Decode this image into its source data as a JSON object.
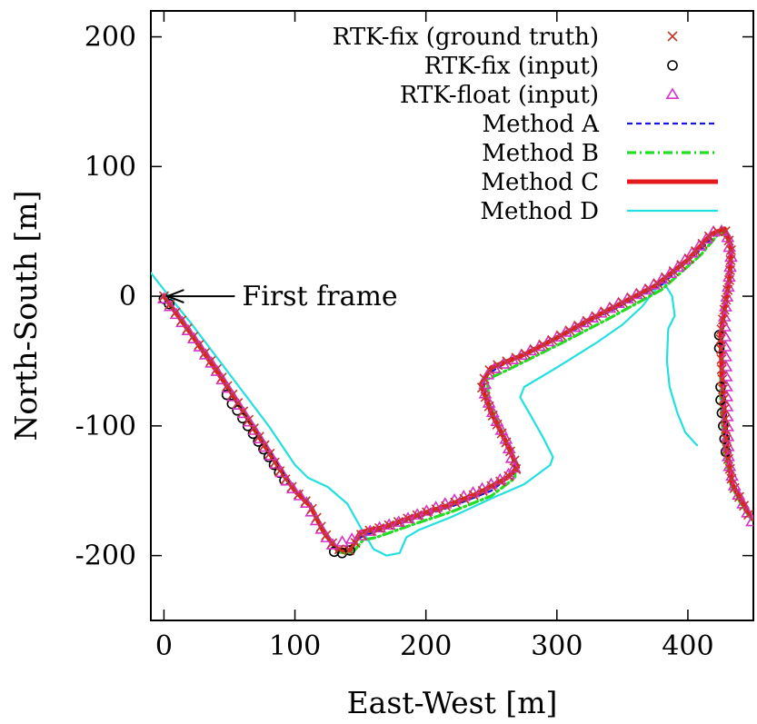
{
  "chart_data": {
    "type": "line",
    "xlabel": "East-West [m]",
    "ylabel": "North-South [m]",
    "xlim": [
      -10,
      450
    ],
    "ylim": [
      -250,
      220
    ],
    "x_ticks": [
      0,
      100,
      200,
      300,
      400
    ],
    "y_ticks": [
      200,
      100,
      0,
      -100,
      -200
    ],
    "x_tick_labels": [
      "0",
      "100",
      "200",
      "300",
      "400"
    ],
    "y_tick_labels": [
      "200",
      "100",
      "0",
      "-100",
      "-200"
    ],
    "grid": false,
    "legend_position": "top-right",
    "annotation": {
      "text": "First frame",
      "x": 0,
      "y": 0
    },
    "series": [
      {
        "name": "RTK-fix (ground truth)",
        "style": "marker-x",
        "color": "#c0392b",
        "points": [
          [
            0,
            0
          ],
          [
            10,
            -14
          ],
          [
            20,
            -28
          ],
          [
            30,
            -42
          ],
          [
            40,
            -56
          ],
          [
            50,
            -72
          ],
          [
            60,
            -88
          ],
          [
            70,
            -104
          ],
          [
            80,
            -120
          ],
          [
            90,
            -138
          ],
          [
            100,
            -150
          ],
          [
            112,
            -162
          ],
          [
            122,
            -182
          ],
          [
            132,
            -195
          ],
          [
            142,
            -196
          ],
          [
            152,
            -182
          ],
          [
            168,
            -178
          ],
          [
            190,
            -170
          ],
          [
            215,
            -162
          ],
          [
            240,
            -152
          ],
          [
            262,
            -140
          ],
          [
            270,
            -132
          ],
          [
            260,
            -110
          ],
          [
            250,
            -90
          ],
          [
            242,
            -68
          ],
          [
            250,
            -55
          ],
          [
            275,
            -45
          ],
          [
            300,
            -32
          ],
          [
            325,
            -18
          ],
          [
            350,
            -5
          ],
          [
            375,
            8
          ],
          [
            400,
            28
          ],
          [
            418,
            48
          ],
          [
            428,
            52
          ],
          [
            433,
            38
          ],
          [
            432,
            15
          ],
          [
            428,
            -10
          ],
          [
            425,
            -30
          ],
          [
            426,
            -60
          ],
          [
            428,
            -90
          ],
          [
            430,
            -120
          ],
          [
            434,
            -145
          ],
          [
            442,
            -160
          ],
          [
            448,
            -172
          ]
        ]
      },
      {
        "name": "RTK-fix (input)",
        "style": "marker-circle",
        "color": "#000000",
        "points": [
          [
            0,
            -2
          ],
          [
            4,
            -6
          ],
          [
            48,
            -76
          ],
          [
            52,
            -83
          ],
          [
            56,
            -88
          ],
          [
            60,
            -94
          ],
          [
            64,
            -100
          ],
          [
            68,
            -106
          ],
          [
            72,
            -112
          ],
          [
            76,
            -118
          ],
          [
            80,
            -124
          ],
          [
            84,
            -130
          ],
          [
            88,
            -136
          ],
          [
            92,
            -142
          ],
          [
            130,
            -197
          ],
          [
            136,
            -198
          ],
          [
            142,
            -196
          ],
          [
            424,
            -30
          ],
          [
            424,
            -40
          ],
          [
            425,
            -70
          ],
          [
            425,
            -80
          ],
          [
            426,
            -90
          ],
          [
            427,
            -100
          ],
          [
            428,
            -110
          ],
          [
            429,
            -120
          ]
        ]
      },
      {
        "name": "RTK-float (input)",
        "style": "marker-triangle",
        "color": "#d633c8",
        "points": [
          [
            0,
            -2
          ],
          [
            8,
            -12
          ],
          [
            18,
            -26
          ],
          [
            28,
            -40
          ],
          [
            38,
            -54
          ],
          [
            96,
            -146
          ],
          [
            108,
            -158
          ],
          [
            118,
            -176
          ],
          [
            128,
            -192
          ],
          [
            148,
            -186
          ],
          [
            160,
            -180
          ],
          [
            180,
            -174
          ],
          [
            200,
            -166
          ],
          [
            220,
            -158
          ],
          [
            240,
            -150
          ],
          [
            258,
            -141
          ],
          [
            268,
            -134
          ],
          [
            262,
            -112
          ],
          [
            252,
            -92
          ],
          [
            244,
            -72
          ],
          [
            248,
            -58
          ],
          [
            270,
            -47
          ],
          [
            290,
            -37
          ],
          [
            310,
            -26
          ],
          [
            330,
            -15
          ],
          [
            350,
            -4
          ],
          [
            370,
            6
          ],
          [
            390,
            20
          ],
          [
            410,
            40
          ],
          [
            422,
            52
          ],
          [
            430,
            48
          ],
          [
            433,
            30
          ],
          [
            431,
            8
          ],
          [
            428,
            -14
          ],
          [
            431,
            -128
          ],
          [
            436,
            -148
          ],
          [
            444,
            -164
          ],
          [
            449,
            -174
          ]
        ]
      },
      {
        "name": "Method A",
        "style": "dashed",
        "color": "#1515d9",
        "points": [
          [
            0,
            0
          ],
          [
            20,
            -28
          ],
          [
            50,
            -72
          ],
          [
            80,
            -120
          ],
          [
            100,
            -150
          ],
          [
            112,
            -160
          ],
          [
            120,
            -178
          ],
          [
            130,
            -194
          ],
          [
            140,
            -197
          ],
          [
            150,
            -186
          ],
          [
            160,
            -182
          ],
          [
            190,
            -172
          ],
          [
            220,
            -162
          ],
          [
            250,
            -150
          ],
          [
            268,
            -136
          ],
          [
            265,
            -120
          ],
          [
            255,
            -100
          ],
          [
            245,
            -78
          ],
          [
            244,
            -62
          ],
          [
            260,
            -52
          ],
          [
            300,
            -33
          ],
          [
            340,
            -12
          ],
          [
            380,
            9
          ],
          [
            410,
            36
          ],
          [
            425,
            52
          ],
          [
            433,
            44
          ],
          [
            433,
            20
          ],
          [
            428,
            -10
          ],
          [
            426,
            -40
          ],
          [
            426,
            -80
          ],
          [
            429,
            -118
          ],
          [
            434,
            -145
          ],
          [
            442,
            -160
          ],
          [
            450,
            -172
          ]
        ]
      },
      {
        "name": "Method B",
        "style": "dash-dot",
        "color": "#22dd22",
        "points": [
          [
            0,
            0
          ],
          [
            20,
            -28
          ],
          [
            50,
            -72
          ],
          [
            80,
            -120
          ],
          [
            100,
            -150
          ],
          [
            112,
            -162
          ],
          [
            122,
            -182
          ],
          [
            132,
            -197
          ],
          [
            143,
            -199
          ],
          [
            152,
            -188
          ],
          [
            162,
            -186
          ],
          [
            190,
            -176
          ],
          [
            220,
            -166
          ],
          [
            250,
            -154
          ],
          [
            268,
            -140
          ],
          [
            268,
            -126
          ],
          [
            258,
            -104
          ],
          [
            248,
            -82
          ],
          [
            247,
            -64
          ],
          [
            262,
            -57
          ],
          [
            300,
            -38
          ],
          [
            340,
            -17
          ],
          [
            380,
            5
          ],
          [
            410,
            32
          ],
          [
            425,
            50
          ],
          [
            432,
            42
          ],
          [
            432,
            18
          ],
          [
            427,
            -12
          ],
          [
            425,
            -42
          ],
          [
            425,
            -82
          ],
          [
            428,
            -120
          ],
          [
            433,
            -146
          ],
          [
            441,
            -161
          ],
          [
            449,
            -173
          ]
        ]
      },
      {
        "name": "Method C",
        "style": "solid-thick",
        "color": "#e31a1c",
        "points": [
          [
            0,
            0
          ],
          [
            20,
            -28
          ],
          [
            50,
            -72
          ],
          [
            80,
            -120
          ],
          [
            100,
            -150
          ],
          [
            112,
            -162
          ],
          [
            122,
            -182
          ],
          [
            132,
            -195
          ],
          [
            142,
            -196
          ],
          [
            150,
            -182
          ],
          [
            168,
            -178
          ],
          [
            190,
            -170
          ],
          [
            215,
            -162
          ],
          [
            240,
            -152
          ],
          [
            262,
            -140
          ],
          [
            270,
            -132
          ],
          [
            260,
            -110
          ],
          [
            250,
            -90
          ],
          [
            242,
            -68
          ],
          [
            250,
            -55
          ],
          [
            275,
            -45
          ],
          [
            300,
            -32
          ],
          [
            325,
            -18
          ],
          [
            350,
            -5
          ],
          [
            375,
            8
          ],
          [
            400,
            28
          ],
          [
            418,
            48
          ],
          [
            428,
            52
          ],
          [
            433,
            38
          ],
          [
            432,
            15
          ],
          [
            428,
            -10
          ],
          [
            425,
            -30
          ],
          [
            426,
            -60
          ],
          [
            428,
            -90
          ],
          [
            430,
            -120
          ],
          [
            434,
            -145
          ],
          [
            442,
            -160
          ],
          [
            450,
            -172
          ]
        ]
      },
      {
        "name": "Method D",
        "style": "solid-thin",
        "color": "#22e0e0",
        "points": [
          [
            -10,
            18
          ],
          [
            0,
            5
          ],
          [
            20,
            -20
          ],
          [
            50,
            -60
          ],
          [
            80,
            -100
          ],
          [
            100,
            -130
          ],
          [
            110,
            -140
          ],
          [
            125,
            -147
          ],
          [
            140,
            -160
          ],
          [
            150,
            -178
          ],
          [
            160,
            -195
          ],
          [
            170,
            -200
          ],
          [
            180,
            -198
          ],
          [
            185,
            -186
          ],
          [
            195,
            -180
          ],
          [
            220,
            -170
          ],
          [
            250,
            -156
          ],
          [
            275,
            -145
          ],
          [
            295,
            -130
          ],
          [
            297,
            -124
          ],
          [
            290,
            -110
          ],
          [
            280,
            -92
          ],
          [
            272,
            -78
          ],
          [
            275,
            -70
          ],
          [
            300,
            -55
          ],
          [
            330,
            -36
          ],
          [
            350,
            -22
          ],
          [
            365,
            -8
          ],
          [
            376,
            6
          ],
          [
            382,
            10
          ],
          [
            388,
            0
          ],
          [
            390,
            -15
          ],
          [
            385,
            -25
          ],
          [
            384,
            -50
          ],
          [
            386,
            -70
          ],
          [
            392,
            -90
          ],
          [
            398,
            -105
          ],
          [
            407,
            -115
          ]
        ]
      }
    ]
  }
}
